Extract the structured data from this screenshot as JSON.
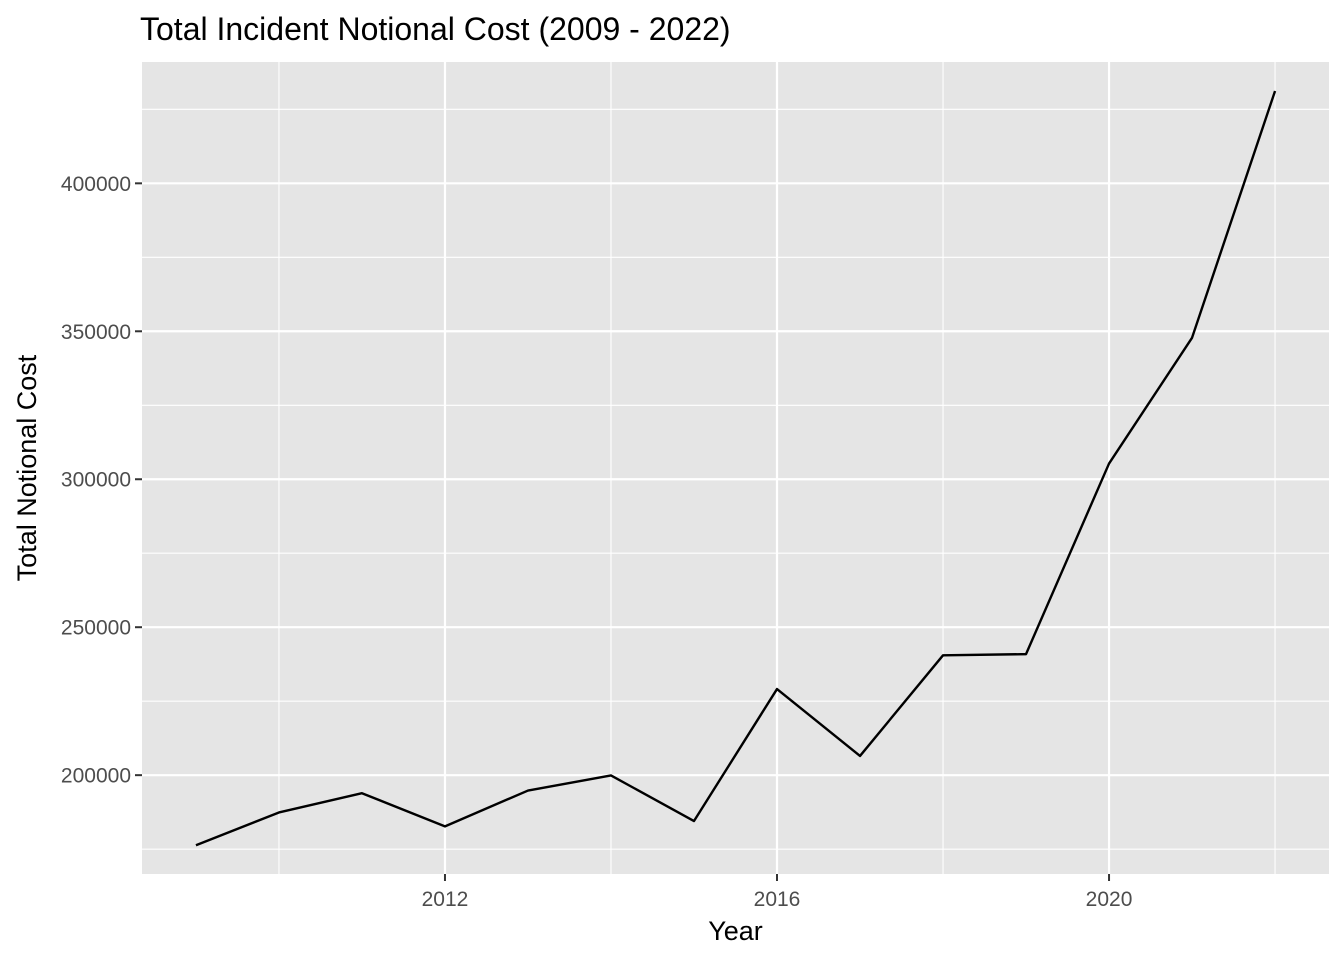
{
  "chart_data": {
    "type": "line",
    "title": "Total Incident Notional Cost (2009 - 2022)",
    "xlabel": "Year",
    "ylabel": "Total Notional Cost",
    "x": [
      2009,
      2010,
      2011,
      2012,
      2013,
      2014,
      2015,
      2016,
      2017,
      2018,
      2019,
      2020,
      2021,
      2022
    ],
    "series": [
      {
        "values": [
          176300,
          187400,
          193900,
          182700,
          194800,
          199900,
          184500,
          229100,
          206500,
          240500,
          240900,
          305300,
          347800,
          431200
        ]
      }
    ],
    "xlim": [
      2008.35,
      2022.65
    ],
    "ylim": [
      166600,
      441000
    ],
    "x_ticks": [
      2012,
      2016,
      2020
    ],
    "x_tick_labels": [
      "2012",
      "2016",
      "2020"
    ],
    "y_ticks": [
      200000,
      250000,
      300000,
      350000,
      400000
    ],
    "y_tick_labels": [
      "200000",
      "250000",
      "300000",
      "350000",
      "400000"
    ],
    "x_minor_ticks": [
      2010,
      2014,
      2018,
      2022
    ],
    "y_minor_ticks": [
      175000,
      225000,
      275000,
      325000,
      375000,
      425000
    ],
    "grid": true,
    "colors": {
      "panel_background": "#e5e5e5",
      "grid": "#ffffff",
      "line": "#000000",
      "tick_text": "#4d4d4d",
      "tick_mark": "#333333"
    }
  }
}
